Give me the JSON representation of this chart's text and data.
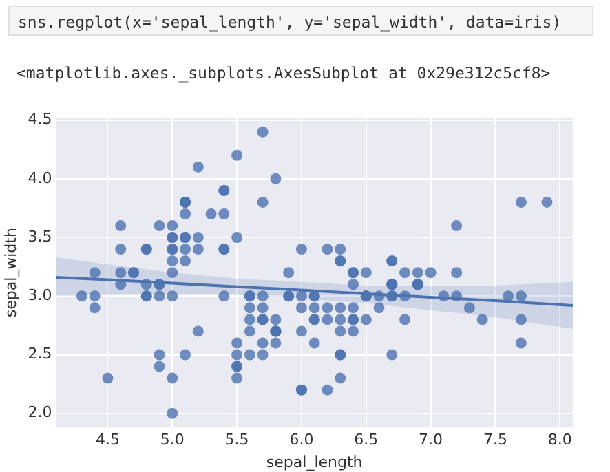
{
  "chart_data": {
    "type": "scatter",
    "xlabel": "sepal_length",
    "ylabel": "sepal_width",
    "annotations": [
      "sns.regplot(x='sepal_length', y='sepal_width', data=iris)",
      "<matplotlib.axes._subplots.AxesSubplot at 0x29e312c5cf8>"
    ],
    "xlim": [
      4.1,
      8.1
    ],
    "xticks": [
      {
        "value": 4.5,
        "label": "4.5"
      },
      {
        "value": 5,
        "label": "5.0"
      },
      {
        "value": 5.5,
        "label": "5.5"
      },
      {
        "value": 6,
        "label": "6.0"
      },
      {
        "value": 6.5,
        "label": "6.5"
      },
      {
        "value": 7,
        "label": "7.0"
      },
      {
        "value": 7.5,
        "label": "7.5"
      },
      {
        "value": 8,
        "label": "8.0"
      }
    ],
    "ylim": [
      1.88,
      4.52
    ],
    "yticks": [
      {
        "value": 2,
        "label": "2.0"
      },
      {
        "value": 2.5,
        "label": "2.5"
      },
      {
        "value": 3,
        "label": "3.0"
      },
      {
        "value": 3.5,
        "label": "3.5"
      },
      {
        "value": 4,
        "label": "4.0"
      },
      {
        "value": 4.5,
        "label": "4.5"
      }
    ],
    "grid": true,
    "series": [
      {
        "color": "#4c72b0",
        "marker": "circle",
        "x": [
          5.1,
          4.9,
          4.7,
          4.6,
          5.0,
          5.4,
          4.6,
          5.0,
          4.4,
          4.9,
          5.4,
          4.8,
          4.8,
          4.3,
          5.8,
          5.7,
          5.4,
          5.1,
          5.7,
          5.1,
          5.4,
          5.1,
          4.6,
          5.1,
          4.8,
          5.0,
          5.0,
          5.2,
          5.2,
          4.7,
          4.8,
          5.4,
          5.2,
          5.5,
          4.9,
          5.0,
          5.5,
          4.9,
          4.4,
          5.1,
          5.0,
          4.5,
          4.4,
          5.0,
          5.1,
          4.8,
          5.1,
          4.6,
          5.3,
          5.0,
          7.0,
          6.4,
          6.9,
          5.5,
          6.5,
          5.7,
          6.3,
          4.9,
          6.6,
          5.2,
          5.0,
          5.9,
          6.0,
          6.1,
          5.6,
          6.7,
          5.6,
          5.8,
          6.2,
          5.6,
          5.9,
          6.1,
          6.3,
          6.1,
          6.4,
          6.6,
          6.8,
          6.7,
          6.0,
          5.7,
          5.5,
          5.5,
          5.8,
          6.0,
          5.4,
          6.0,
          6.7,
          6.3,
          5.6,
          5.5,
          5.5,
          6.1,
          5.8,
          5.0,
          5.6,
          5.7,
          5.7,
          6.2,
          5.1,
          5.7,
          6.3,
          5.8,
          7.1,
          6.3,
          6.5,
          7.6,
          4.9,
          7.3,
          6.7,
          7.2,
          6.5,
          6.4,
          6.8,
          5.7,
          5.8,
          6.4,
          6.5,
          7.7,
          7.7,
          6.0,
          6.9,
          5.6,
          7.7,
          6.3,
          6.7,
          7.2,
          6.2,
          6.1,
          6.4,
          7.2,
          7.4,
          7.9,
          6.4,
          6.3,
          6.1,
          7.7,
          6.3,
          6.4,
          6.0,
          6.9,
          6.7,
          6.9,
          5.8,
          6.8,
          6.7,
          6.7,
          6.3,
          6.5,
          6.2,
          5.9
        ],
        "values": [
          3.5,
          3.0,
          3.2,
          3.1,
          3.6,
          3.9,
          3.4,
          3.4,
          2.9,
          3.1,
          3.7,
          3.4,
          3.0,
          3.0,
          4.0,
          4.4,
          3.9,
          3.5,
          3.8,
          3.8,
          3.4,
          3.7,
          3.6,
          3.3,
          3.4,
          3.0,
          3.4,
          3.5,
          3.4,
          3.2,
          3.1,
          3.4,
          4.1,
          4.2,
          3.1,
          3.2,
          3.5,
          3.6,
          3.0,
          3.4,
          3.5,
          2.3,
          3.2,
          3.5,
          3.8,
          3.0,
          3.8,
          3.2,
          3.7,
          3.3,
          3.2,
          3.2,
          3.1,
          2.3,
          2.8,
          2.8,
          3.3,
          2.4,
          2.9,
          2.7,
          2.0,
          3.0,
          2.2,
          2.9,
          2.9,
          3.1,
          3.0,
          2.7,
          2.2,
          2.5,
          3.2,
          2.8,
          2.5,
          2.8,
          2.9,
          3.0,
          2.8,
          3.0,
          2.9,
          2.6,
          2.4,
          2.4,
          2.7,
          2.7,
          3.0,
          3.4,
          3.1,
          2.3,
          3.0,
          2.5,
          2.6,
          3.0,
          2.6,
          2.3,
          2.7,
          3.0,
          2.9,
          2.9,
          2.5,
          2.8,
          3.3,
          2.7,
          3.0,
          2.9,
          3.0,
          3.0,
          2.5,
          2.9,
          2.5,
          3.6,
          3.2,
          2.7,
          3.0,
          2.5,
          2.8,
          3.2,
          3.0,
          3.8,
          2.6,
          2.2,
          3.2,
          2.8,
          2.8,
          2.7,
          3.3,
          3.2,
          2.8,
          3.0,
          2.8,
          3.0,
          2.8,
          3.8,
          2.8,
          2.8,
          2.6,
          3.0,
          3.4,
          3.1,
          3.0,
          3.1,
          3.1,
          3.1,
          2.7,
          3.2,
          3.3,
          3.0,
          2.5,
          3.0,
          3.4,
          3.0
        ]
      },
      {
        "type": "line",
        "marker": "none",
        "color": "#4c72b0",
        "x": [
          4.1,
          4.5,
          5.0,
          5.5,
          5.85,
          6.5,
          7.0,
          7.5,
          8.1
        ],
        "values": [
          3.16,
          3.14,
          3.11,
          3.08,
          3.06,
          3.02,
          2.99,
          2.96,
          2.92
        ],
        "lower": [
          3.0,
          3.01,
          3.02,
          3.01,
          2.99,
          2.94,
          2.88,
          2.82,
          2.72
        ],
        "upper": [
          3.33,
          3.27,
          3.2,
          3.15,
          3.13,
          3.09,
          3.09,
          3.09,
          3.12
        ]
      }
    ]
  }
}
